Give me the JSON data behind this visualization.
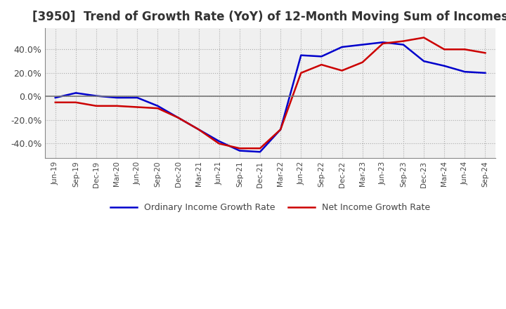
{
  "title": "[3950]  Trend of Growth Rate (YoY) of 12-Month Moving Sum of Incomes",
  "title_fontsize": 12,
  "background_color": "#ffffff",
  "plot_bg_color": "#f0f0f0",
  "legend_labels": [
    "Ordinary Income Growth Rate",
    "Net Income Growth Rate"
  ],
  "legend_colors": [
    "#0000cc",
    "#cc0000"
  ],
  "x_labels": [
    "Jun-19",
    "Sep-19",
    "Dec-19",
    "Mar-20",
    "Jun-20",
    "Sep-20",
    "Dec-20",
    "Mar-21",
    "Jun-21",
    "Sep-21",
    "Dec-21",
    "Mar-22",
    "Jun-22",
    "Sep-22",
    "Dec-22",
    "Mar-23",
    "Jun-23",
    "Sep-23",
    "Dec-23",
    "Mar-24",
    "Jun-24",
    "Sep-24"
  ],
  "ordinary_income": [
    -0.01,
    0.03,
    0.005,
    -0.01,
    -0.01,
    -0.08,
    -0.18,
    -0.28,
    -0.38,
    -0.46,
    -0.47,
    -0.28,
    0.35,
    0.34,
    0.42,
    0.44,
    0.46,
    0.44,
    0.3,
    0.26,
    0.21,
    0.2
  ],
  "net_income": [
    -0.05,
    -0.05,
    -0.08,
    -0.08,
    -0.09,
    -0.1,
    -0.18,
    -0.28,
    -0.4,
    -0.44,
    -0.44,
    -0.28,
    0.2,
    0.27,
    0.22,
    0.29,
    0.45,
    0.47,
    0.5,
    0.4,
    0.4,
    0.37
  ],
  "ylim": [
    -0.52,
    0.58
  ],
  "yticks": [
    -0.4,
    -0.2,
    0.0,
    0.2,
    0.4
  ],
  "line_width": 1.8
}
